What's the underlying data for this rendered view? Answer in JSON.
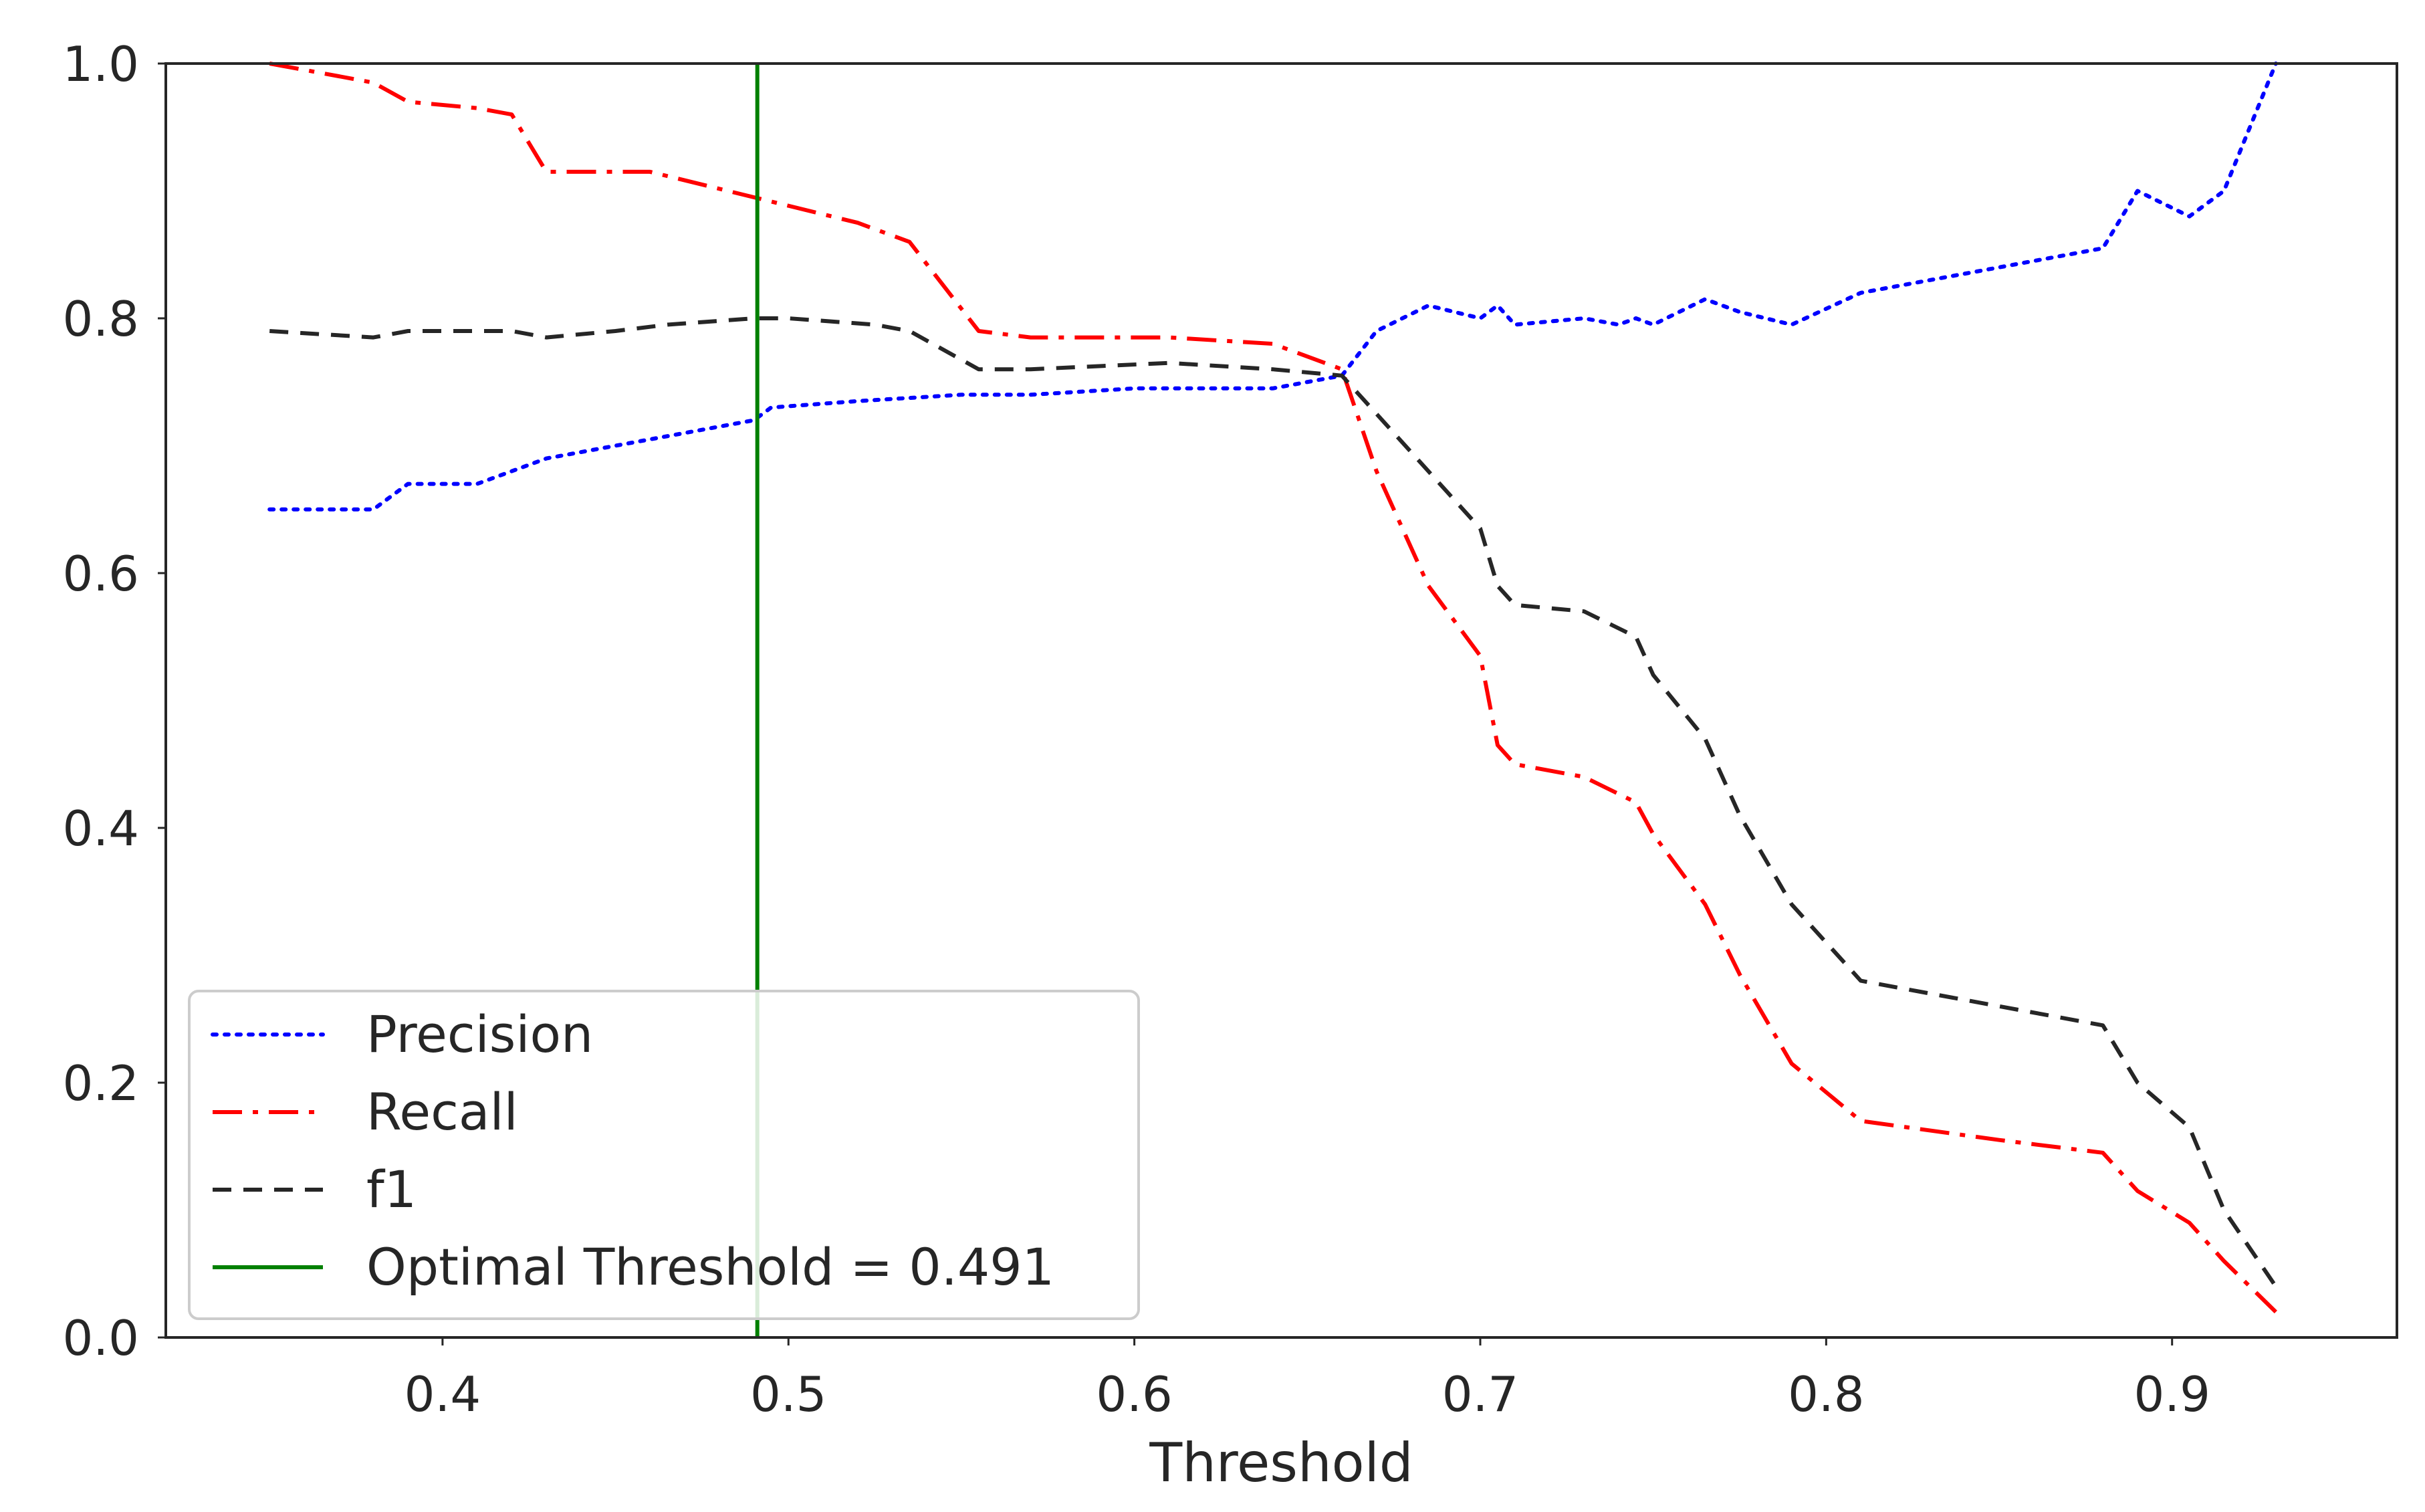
{
  "chart_data": {
    "type": "line",
    "title": "",
    "xlabel": "Threshold",
    "ylabel": "",
    "xlim": [
      0.32,
      0.965
    ],
    "ylim": [
      0.0,
      1.0
    ],
    "xticks": [
      0.4,
      0.5,
      0.6,
      0.7,
      0.8,
      0.9
    ],
    "xtick_labels": [
      "0.4",
      "0.5",
      "0.6",
      "0.7",
      "0.8",
      "0.9"
    ],
    "yticks": [
      0.0,
      0.2,
      0.4,
      0.6,
      0.8,
      1.0
    ],
    "ytick_labels": [
      "0.0",
      "0.2",
      "0.4",
      "0.6",
      "0.8",
      "1.0"
    ],
    "grid": false,
    "legend_position": "lower-left",
    "series": [
      {
        "name": "Precision",
        "color": "#0000ff",
        "style": "dotted",
        "x": [
          0.35,
          0.38,
          0.39,
          0.41,
          0.42,
          0.43,
          0.45,
          0.47,
          0.49,
          0.495,
          0.52,
          0.55,
          0.57,
          0.6,
          0.64,
          0.66,
          0.67,
          0.685,
          0.7,
          0.705,
          0.71,
          0.73,
          0.74,
          0.745,
          0.75,
          0.765,
          0.775,
          0.79,
          0.81,
          0.85,
          0.88,
          0.89,
          0.905,
          0.915,
          0.93
        ],
        "values": [
          0.65,
          0.65,
          0.67,
          0.67,
          0.68,
          0.69,
          0.7,
          0.71,
          0.72,
          0.73,
          0.735,
          0.74,
          0.74,
          0.745,
          0.745,
          0.755,
          0.79,
          0.81,
          0.8,
          0.81,
          0.795,
          0.8,
          0.795,
          0.8,
          0.795,
          0.815,
          0.805,
          0.795,
          0.82,
          0.84,
          0.855,
          0.9,
          0.88,
          0.9,
          1.0
        ]
      },
      {
        "name": "Recall",
        "color": "#ff0000",
        "style": "dashdot",
        "x": [
          0.35,
          0.37,
          0.38,
          0.39,
          0.41,
          0.42,
          0.43,
          0.46,
          0.49,
          0.52,
          0.535,
          0.555,
          0.57,
          0.61,
          0.64,
          0.66,
          0.67,
          0.685,
          0.7,
          0.705,
          0.71,
          0.73,
          0.745,
          0.75,
          0.765,
          0.775,
          0.79,
          0.81,
          0.85,
          0.88,
          0.89,
          0.905,
          0.915,
          0.93
        ],
        "values": [
          1.0,
          0.99,
          0.985,
          0.97,
          0.965,
          0.96,
          0.915,
          0.915,
          0.895,
          0.875,
          0.86,
          0.79,
          0.785,
          0.785,
          0.78,
          0.76,
          0.68,
          0.59,
          0.535,
          0.465,
          0.45,
          0.44,
          0.42,
          0.395,
          0.34,
          0.285,
          0.215,
          0.17,
          0.155,
          0.145,
          0.115,
          0.09,
          0.06,
          0.02
        ]
      },
      {
        "name": "f1",
        "color": "#262626",
        "style": "dashed",
        "x": [
          0.35,
          0.38,
          0.39,
          0.42,
          0.43,
          0.45,
          0.465,
          0.49,
          0.5,
          0.525,
          0.535,
          0.555,
          0.57,
          0.61,
          0.64,
          0.66,
          0.7,
          0.705,
          0.71,
          0.73,
          0.745,
          0.75,
          0.765,
          0.775,
          0.79,
          0.81,
          0.88,
          0.89,
          0.905,
          0.915,
          0.93
        ],
        "values": [
          0.79,
          0.785,
          0.79,
          0.79,
          0.785,
          0.79,
          0.795,
          0.8,
          0.8,
          0.795,
          0.79,
          0.76,
          0.76,
          0.765,
          0.76,
          0.755,
          0.635,
          0.59,
          0.575,
          0.57,
          0.55,
          0.52,
          0.47,
          0.41,
          0.34,
          0.28,
          0.245,
          0.2,
          0.165,
          0.1,
          0.04
        ]
      }
    ],
    "vline": {
      "name": "Optimal Threshold = 0.491",
      "x": 0.491,
      "color": "#008000",
      "style": "solid"
    }
  }
}
